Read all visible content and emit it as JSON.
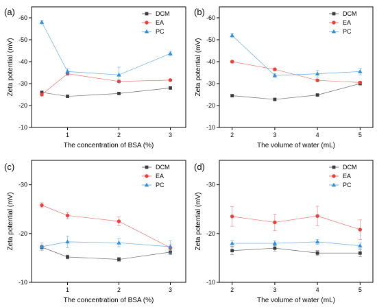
{
  "chart_data": [
    {
      "type": "line",
      "panel_label": "(a)",
      "xlabel": "The concentration of BSA (%)",
      "ylabel": "Zeta potential (mV)",
      "xlim": [
        0.3,
        3.3
      ],
      "ylim": [
        -10,
        -65
      ],
      "x_ticks": [
        1,
        2,
        3
      ],
      "y_ticks": [
        -10,
        -20,
        -30,
        -40,
        -50,
        -60
      ],
      "x": [
        0.5,
        1,
        2,
        3
      ],
      "legend": "top-right",
      "series": [
        {
          "name": "DCM",
          "color": "#3a3a3a",
          "marker": "square",
          "values": [
            -26,
            -24.2,
            -25.5,
            -28
          ],
          "errors": [
            0.6,
            0.5,
            0.5,
            0.6
          ]
        },
        {
          "name": "EA",
          "color": "#e8413c",
          "marker": "circle",
          "values": [
            -25,
            -34.5,
            -31,
            -31.6
          ],
          "errors": [
            0.6,
            0.7,
            0.6,
            0.5
          ]
        },
        {
          "name": "PC",
          "color": "#2f8fd8",
          "marker": "triangle",
          "values": [
            -58,
            -35.5,
            -34,
            -43.7
          ],
          "errors": [
            0.8,
            1.2,
            3.5,
            1.0
          ]
        }
      ]
    },
    {
      "type": "line",
      "panel_label": "(b)",
      "xlabel": "The volume of water (mL)",
      "ylabel": "Zeta potential (mV)",
      "xlim": [
        1.7,
        5.3
      ],
      "ylim": [
        -10,
        -65
      ],
      "x_ticks": [
        2,
        3,
        4,
        5
      ],
      "y_ticks": [
        -10,
        -20,
        -30,
        -40,
        -50,
        -60
      ],
      "x": [
        2,
        3,
        4,
        5
      ],
      "legend": "top-right",
      "series": [
        {
          "name": "DCM",
          "color": "#3a3a3a",
          "marker": "square",
          "values": [
            -24.5,
            -22.8,
            -24.8,
            -30
          ],
          "errors": [
            0.5,
            0.5,
            0.5,
            0.6
          ]
        },
        {
          "name": "EA",
          "color": "#e8413c",
          "marker": "circle",
          "values": [
            -40,
            -36.5,
            -31.5,
            -30.5
          ],
          "errors": [
            0.6,
            0.7,
            0.6,
            0.6
          ]
        },
        {
          "name": "PC",
          "color": "#2f8fd8",
          "marker": "triangle",
          "values": [
            -52,
            -33.7,
            -34.5,
            -35.5
          ],
          "errors": [
            1.0,
            0.8,
            1.5,
            1.5
          ]
        }
      ]
    },
    {
      "type": "line",
      "panel_label": "(c)",
      "xlabel": "The concentration of BSA (%)",
      "ylabel": "Zeta potential (mV)",
      "xlim": [
        0.3,
        3.3
      ],
      "ylim": [
        -10,
        -35
      ],
      "x_ticks": [
        1,
        2,
        3
      ],
      "y_ticks": [
        -10,
        -20,
        -30
      ],
      "x": [
        0.5,
        1,
        2,
        3
      ],
      "legend": "top-right",
      "series": [
        {
          "name": "DCM",
          "color": "#3a3a3a",
          "marker": "square",
          "values": [
            -17.2,
            -15.2,
            -14.7,
            -16.2
          ],
          "errors": [
            0.4,
            0.4,
            0.4,
            0.5
          ]
        },
        {
          "name": "EA",
          "color": "#e8413c",
          "marker": "circle",
          "values": [
            -25.8,
            -23.7,
            -22.5,
            -17.1
          ],
          "errors": [
            0.5,
            0.7,
            0.9,
            0.6
          ]
        },
        {
          "name": "PC",
          "color": "#2f8fd8",
          "marker": "triangle",
          "values": [
            -17.3,
            -18.3,
            -18.1,
            -17.3
          ],
          "errors": [
            0.8,
            1.2,
            0.8,
            1.2
          ]
        }
      ]
    },
    {
      "type": "line",
      "panel_label": "(d)",
      "xlabel": "The volume of water (mL)",
      "ylabel": "Zeta potential (mV)",
      "xlim": [
        1.7,
        5.3
      ],
      "ylim": [
        -10,
        -35
      ],
      "x_ticks": [
        2,
        3,
        4,
        5
      ],
      "y_ticks": [
        -10,
        -20,
        -30
      ],
      "x": [
        2,
        3,
        4,
        5
      ],
      "legend": "top-right",
      "series": [
        {
          "name": "DCM",
          "color": "#3a3a3a",
          "marker": "square",
          "values": [
            -16.5,
            -17,
            -16,
            -16
          ],
          "errors": [
            0.8,
            0.6,
            0.5,
            0.7
          ]
        },
        {
          "name": "EA",
          "color": "#e8413c",
          "marker": "circle",
          "values": [
            -23.5,
            -22.3,
            -23.6,
            -20.8
          ],
          "errors": [
            2.0,
            1.7,
            2.0,
            2.0
          ]
        },
        {
          "name": "PC",
          "color": "#2f8fd8",
          "marker": "triangle",
          "values": [
            -18,
            -18,
            -18.3,
            -17.5
          ],
          "errors": [
            0.6,
            0.5,
            0.5,
            0.6
          ]
        }
      ]
    }
  ]
}
